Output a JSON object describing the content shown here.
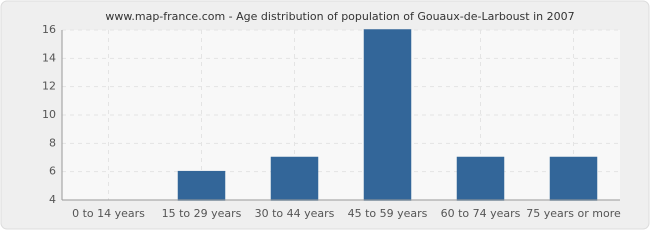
{
  "chart_data": {
    "type": "bar",
    "title": "www.map-france.com - Age distribution of population of Gouaux-de-Larboust in 2007",
    "categories": [
      "0 to 14 years",
      "15 to 29 years",
      "30 to 44 years",
      "45 to 59 years",
      "60 to 74 years",
      "75 years or more"
    ],
    "values": [
      4,
      6,
      7,
      16,
      7,
      7
    ],
    "color": "#336699",
    "ylim": [
      4,
      16
    ],
    "yticks": [
      4,
      6,
      8,
      10,
      12,
      14,
      16
    ],
    "grid": true
  }
}
